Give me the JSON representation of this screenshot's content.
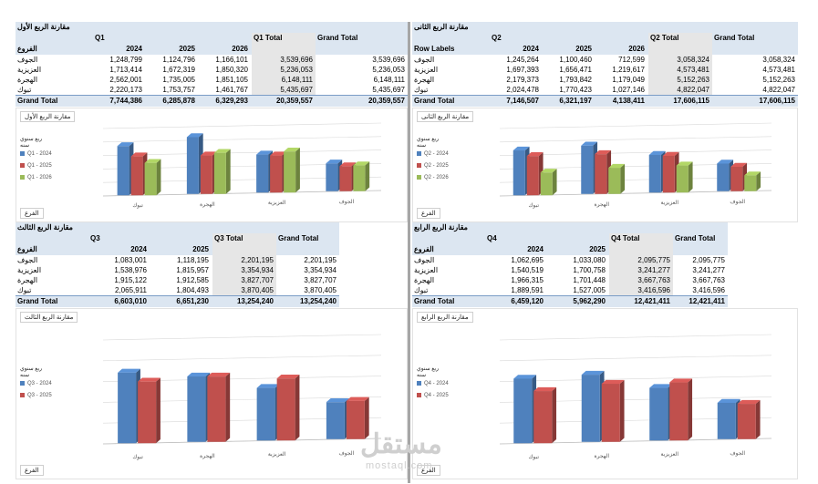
{
  "q1": {
    "title": "مقارنة الربع الأول",
    "q_label": "Q1",
    "total_label": "Q1 Total",
    "grand_label": "Grand Total",
    "row_header": "الفروع",
    "years": [
      "2024",
      "2025",
      "2026"
    ],
    "rows": [
      {
        "name": "الجوف",
        "v": [
          "1,248,799",
          "1,124,796",
          "1,166,101"
        ],
        "t": "3,539,696",
        "g": "3,539,696"
      },
      {
        "name": "العزيزية",
        "v": [
          "1,713,414",
          "1,672,319",
          "1,850,320"
        ],
        "t": "5,236,053",
        "g": "5,236,053"
      },
      {
        "name": "الهجرة",
        "v": [
          "2,562,001",
          "1,735,005",
          "1,851,105"
        ],
        "t": "6,148,111",
        "g": "6,148,111"
      },
      {
        "name": "تبوك",
        "v": [
          "2,220,173",
          "1,753,757",
          "1,461,767"
        ],
        "t": "5,435,697",
        "g": "5,435,697"
      }
    ],
    "grand": {
      "name": "Grand Total",
      "v": [
        "7,744,386",
        "6,285,878",
        "6,329,293"
      ],
      "t": "20,359,557",
      "g": "20,359,557"
    }
  },
  "q2": {
    "title": "مقارنة الربع الثانى",
    "q_label": "Q2",
    "total_label": "Q2 Total",
    "grand_label": "Grand Total",
    "row_header": "Row Labels",
    "years": [
      "2024",
      "2025",
      "2026"
    ],
    "rows": [
      {
        "name": "الجوف",
        "v": [
          "1,245,264",
          "1,100,460",
          "712,599"
        ],
        "t": "3,058,324",
        "g": "3,058,324"
      },
      {
        "name": "العزيزية",
        "v": [
          "1,697,393",
          "1,656,471",
          "1,219,617"
        ],
        "t": "4,573,481",
        "g": "4,573,481"
      },
      {
        "name": "الهجرة",
        "v": [
          "2,179,373",
          "1,793,842",
          "1,179,049"
        ],
        "t": "5,152,263",
        "g": "5,152,263"
      },
      {
        "name": "تبوك",
        "v": [
          "2,024,478",
          "1,770,423",
          "1,027,146"
        ],
        "t": "4,822,047",
        "g": "4,822,047"
      }
    ],
    "grand": {
      "name": "Grand Total",
      "v": [
        "7,146,507",
        "6,321,197",
        "4,138,411"
      ],
      "t": "17,606,115",
      "g": "17,606,115"
    }
  },
  "q3": {
    "title": "مقارنة الربع الثالث",
    "q_label": "Q3",
    "total_label": "Q3 Total",
    "grand_label": "Grand Total",
    "row_header": "الفروع",
    "years": [
      "2024",
      "2025"
    ],
    "rows": [
      {
        "name": "الجوف",
        "v": [
          "1,083,001",
          "1,118,195"
        ],
        "t": "2,201,195",
        "g": "2,201,195"
      },
      {
        "name": "العزيزية",
        "v": [
          "1,538,976",
          "1,815,957"
        ],
        "t": "3,354,934",
        "g": "3,354,934"
      },
      {
        "name": "الهجرة",
        "v": [
          "1,915,122",
          "1,912,585"
        ],
        "t": "3,827,707",
        "g": "3,827,707"
      },
      {
        "name": "تبوك",
        "v": [
          "2,065,911",
          "1,804,493"
        ],
        "t": "3,870,405",
        "g": "3,870,405"
      }
    ],
    "grand": {
      "name": "Grand Total",
      "v": [
        "6,603,010",
        "6,651,230"
      ],
      "t": "13,254,240",
      "g": "13,254,240"
    }
  },
  "q4": {
    "title": "مقارنة الربع الرابع",
    "q_label": "Q4",
    "total_label": "Q4 Total",
    "grand_label": "Grand Total",
    "row_header": "الفروع",
    "years": [
      "2024",
      "2025"
    ],
    "rows": [
      {
        "name": "الجوف",
        "v": [
          "1,062,695",
          "1,033,080"
        ],
        "t": "2,095,775",
        "g": "2,095,775"
      },
      {
        "name": "العزيزية",
        "v": [
          "1,540,519",
          "1,700,758"
        ],
        "t": "3,241,277",
        "g": "3,241,277"
      },
      {
        "name": "الهجرة",
        "v": [
          "1,966,315",
          "1,701,448"
        ],
        "t": "3,667,763",
        "g": "3,667,763"
      },
      {
        "name": "تبوك",
        "v": [
          "1,889,591",
          "1,527,005"
        ],
        "t": "3,416,596",
        "g": "3,416,596"
      }
    ],
    "grand": {
      "name": "Grand Total",
      "v": [
        "6,459,120",
        "5,962,290"
      ],
      "t": "12,421,411",
      "g": "12,421,411"
    }
  },
  "chart_data": [
    {
      "type": "bar",
      "title": "مقارنة الربع الأول",
      "categories": [
        "تبوك",
        "الهجرة",
        "العزيزية",
        "الجوف"
      ],
      "series": [
        {
          "name": "Q1 - 2024",
          "color": "#4f81bd",
          "values": [
            2220173,
            2562001,
            1713414,
            1248799
          ]
        },
        {
          "name": "Q1 - 2025",
          "color": "#c0504d",
          "values": [
            1753757,
            1735005,
            1672319,
            1124796
          ]
        },
        {
          "name": "Q1 - 2026",
          "color": "#9bbb59",
          "values": [
            1461767,
            1851105,
            1850320,
            1166101
          ]
        }
      ],
      "legend_title1": "ربع سنوي",
      "legend_title2": "سنه",
      "filter_label": "الفرع",
      "legend_position": "left"
    },
    {
      "type": "bar",
      "title": "مقارنة الربع الثانى",
      "categories": [
        "تبوك",
        "الهجرة",
        "العزيزية",
        "الجوف"
      ],
      "series": [
        {
          "name": "Q2 - 2024",
          "color": "#4f81bd",
          "values": [
            2024478,
            2179373,
            1697393,
            1245264
          ]
        },
        {
          "name": "Q2 - 2025",
          "color": "#c0504d",
          "values": [
            1770423,
            1793842,
            1656471,
            1100460
          ]
        },
        {
          "name": "Q2 - 2026",
          "color": "#9bbb59",
          "values": [
            1027146,
            1179049,
            1219617,
            712599
          ]
        }
      ],
      "legend_title1": "ربع سنوي",
      "legend_title2": "سنه",
      "filter_label": "الفرع",
      "legend_position": "left"
    },
    {
      "type": "bar",
      "title": "مقارنة الربع الثالث",
      "categories": [
        "تبوك",
        "الهجرة",
        "العزيزية",
        "الجوف"
      ],
      "series": [
        {
          "name": "Q3 - 2024",
          "color": "#4f81bd",
          "values": [
            2065911,
            1915122,
            1538976,
            1083001
          ]
        },
        {
          "name": "Q3 - 2025",
          "color": "#c0504d",
          "values": [
            1804493,
            1912585,
            1815957,
            1118195
          ]
        }
      ],
      "legend_title1": "ربع سنوي",
      "legend_title2": "سنه",
      "filter_label": "الفرع",
      "legend_position": "left"
    },
    {
      "type": "bar",
      "title": "مقارنة الربع الرابع",
      "categories": [
        "تبوك",
        "الهجرة",
        "العزيزية",
        "الجوف"
      ],
      "series": [
        {
          "name": "Q4 - 2024",
          "color": "#4f81bd",
          "values": [
            1889591,
            1966315,
            1540519,
            1062695
          ]
        },
        {
          "name": "Q4 - 2025",
          "color": "#c0504d",
          "values": [
            1527005,
            1701448,
            1700758,
            1033080
          ]
        }
      ],
      "legend_title1": "ربع سنوي",
      "legend_title2": "سنه",
      "filter_label": "الفرع",
      "legend_position": "left"
    }
  ],
  "watermark": {
    "arabic": "مستقل",
    "latin": "mostaql.com"
  }
}
